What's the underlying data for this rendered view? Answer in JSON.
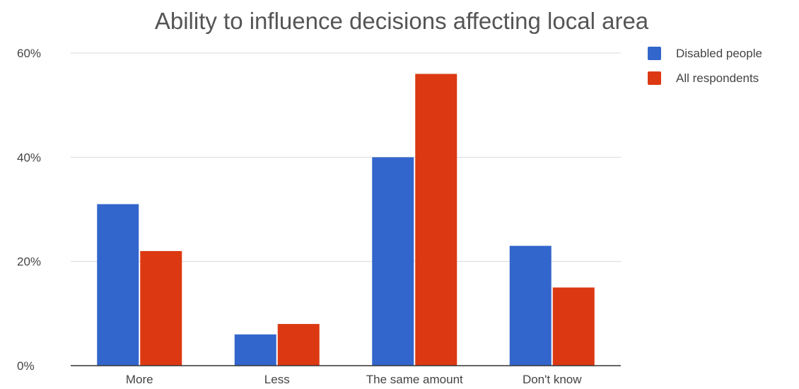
{
  "chart_data": {
    "type": "bar",
    "title": "Ability to influence decisions affecting local area",
    "xlabel": "",
    "ylabel": "",
    "categories": [
      "More",
      "Less",
      "The same amount",
      "Don't know"
    ],
    "series": [
      {
        "name": "Disabled people",
        "values": [
          31,
          6,
          40,
          23
        ],
        "color": "#3366cc"
      },
      {
        "name": "All respondents",
        "values": [
          22,
          8,
          56,
          15
        ],
        "color": "#dc3912"
      }
    ],
    "ylim": [
      0,
      60
    ],
    "yticks": [
      0,
      20,
      40,
      60
    ],
    "ytick_labels": [
      "0%",
      "20%",
      "40%",
      "60%"
    ],
    "grid": true,
    "legend": "top-right"
  }
}
